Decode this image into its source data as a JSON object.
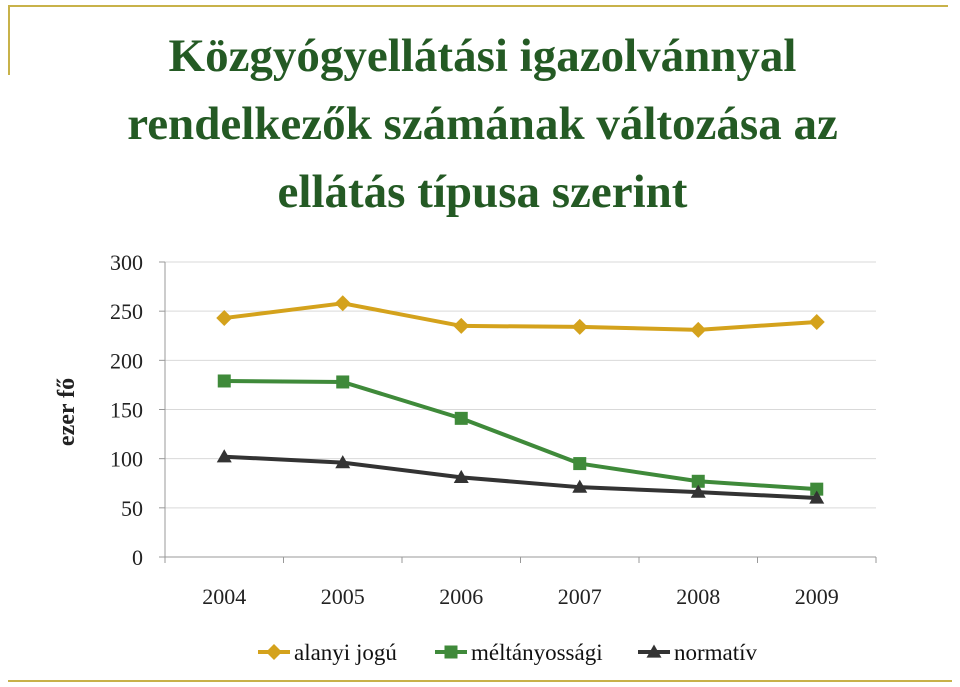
{
  "slide": {
    "title": "Közgyógyellátási igazolvánnyal\nrendelkezők számának változása az\nellátás típusa szerint"
  },
  "colors": {
    "frame": "#c8b24a",
    "title": "#245a24",
    "grid": "#d9d9d9"
  },
  "chart_data": {
    "type": "line",
    "title": "",
    "xlabel": "",
    "ylabel": "ezer fő",
    "categories": [
      "2004",
      "2005",
      "2006",
      "2007",
      "2008",
      "2009"
    ],
    "ylim": [
      0,
      300
    ],
    "yticks": [
      0,
      50,
      100,
      150,
      200,
      250,
      300
    ],
    "grid": true,
    "legend_position": "bottom",
    "series": [
      {
        "name": "alanyi jogú",
        "color": "#d4a21c",
        "marker": "diamond",
        "values": [
          243,
          258,
          235,
          234,
          231,
          239
        ]
      },
      {
        "name": "méltányossági",
        "color": "#3f8a3a",
        "marker": "square",
        "values": [
          179,
          178,
          141,
          95,
          77,
          69
        ]
      },
      {
        "name": "normatív",
        "color": "#333333",
        "marker": "triangle",
        "values": [
          102,
          96,
          81,
          71,
          66,
          60
        ]
      }
    ]
  }
}
